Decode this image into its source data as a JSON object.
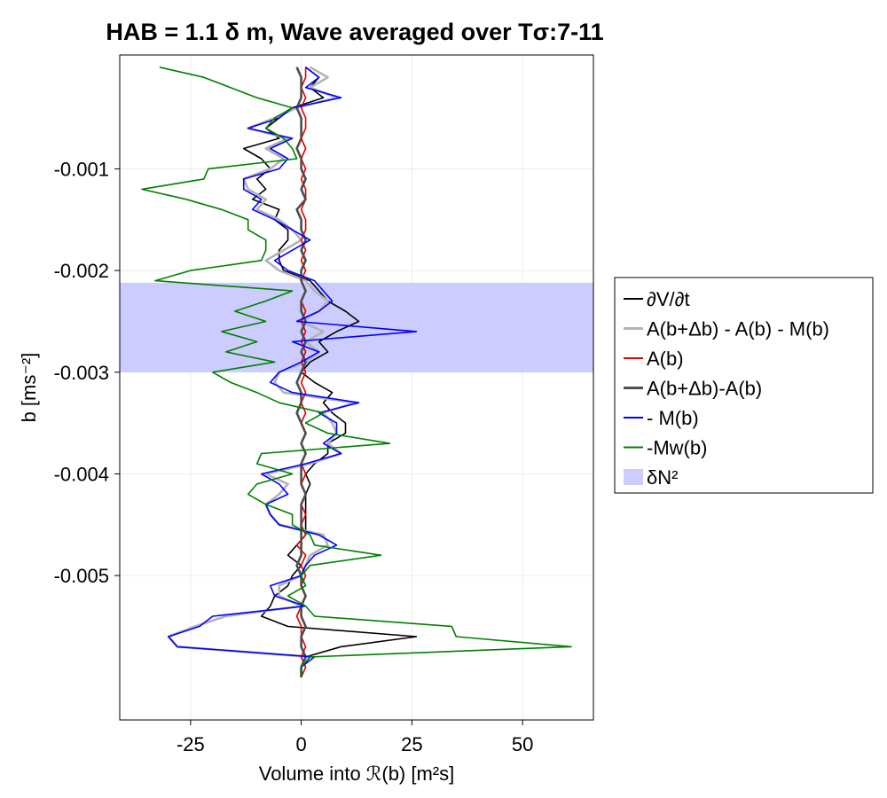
{
  "chart_data": {
    "type": "line",
    "title": "HAB = 1.1 δ m, Wave averaged over Tσ:7-11",
    "xlabel": "Volume into ℛ(b) [m²s]",
    "ylabel": "b [ms⁻²]",
    "xlim": [
      -41,
      66
    ],
    "ylim": [
      -0.00642,
      0.00012
    ],
    "x_ticks": [
      -25,
      0,
      25,
      50
    ],
    "x_tick_labels": [
      "-25",
      "0",
      "25",
      "50"
    ],
    "y_ticks": [
      -0.001,
      -0.002,
      -0.003,
      -0.004,
      -0.005
    ],
    "y_tick_labels": [
      "-0.001",
      "-0.002",
      "-0.003",
      "-0.004",
      "-0.005"
    ],
    "grid": true,
    "legend_position": "right",
    "band": {
      "name": "δN²",
      "y_from": -0.00212,
      "y_to": -0.003,
      "color": "#ccccff"
    },
    "b": [
      -0.0,
      -0.0001,
      -0.0002,
      -0.0003,
      -0.0004,
      -0.0005,
      -0.0006,
      -0.0007,
      -0.0008,
      -0.0009,
      -0.001,
      -0.0011,
      -0.0012,
      -0.0013,
      -0.0014,
      -0.0015,
      -0.0016,
      -0.0017,
      -0.0018,
      -0.0019,
      -0.002,
      -0.0021,
      -0.0022,
      -0.0023,
      -0.0024,
      -0.0025,
      -0.0026,
      -0.0027,
      -0.0028,
      -0.0029,
      -0.003,
      -0.0031,
      -0.0032,
      -0.0033,
      -0.0034,
      -0.0035,
      -0.0036,
      -0.0037,
      -0.0038,
      -0.0039,
      -0.004,
      -0.0041,
      -0.0042,
      -0.0043,
      -0.0044,
      -0.0045,
      -0.0046,
      -0.0047,
      -0.0048,
      -0.0049,
      -0.005,
      -0.0051,
      -0.0052,
      -0.0053,
      -0.0054,
      -0.0055,
      -0.0056,
      -0.0057,
      -0.0058,
      -0.0059,
      -0.006
    ],
    "series": [
      {
        "name": "∂V/∂t",
        "color": "#000000",
        "width": 1.6,
        "x": [
          1,
          4,
          2,
          5,
          -2,
          -5,
          -8,
          -5,
          -13,
          -9,
          -7,
          -10,
          -8,
          -11,
          -5,
          -6,
          -3,
          -3,
          -5,
          -5,
          -4,
          2,
          4,
          6,
          10,
          13,
          8,
          4,
          6,
          2,
          0,
          3,
          7,
          5,
          7,
          10,
          10,
          6,
          6,
          3,
          1,
          2,
          1,
          1,
          1,
          1,
          1,
          -1,
          -3,
          0,
          -2,
          -3,
          -6,
          -7,
          -9,
          -3,
          26,
          9,
          1,
          0,
          0
        ]
      },
      {
        "name": "A(b+Δb) - A(b) - M(b)",
        "color": "#b3b3b3",
        "width": 2.6,
        "x": [
          2,
          6,
          2,
          8,
          -1,
          -6,
          -12,
          -3,
          -8,
          -4,
          -7,
          -13,
          -12,
          -8,
          -10,
          -5,
          -2,
          0,
          -4,
          -8,
          -5,
          1,
          3,
          6,
          4,
          0,
          5,
          1,
          4,
          1,
          -5,
          -6,
          -4,
          12,
          5,
          7,
          8,
          6,
          9,
          2,
          -8,
          -3,
          -5,
          -8,
          -7,
          -5,
          5,
          6,
          2,
          1,
          0,
          -5,
          -5,
          0,
          -17,
          -24,
          -30,
          -28,
          2,
          0,
          0
        ]
      },
      {
        "name": "A(b)",
        "color": "#e00000",
        "width": 1.6,
        "x": [
          1,
          1,
          0,
          1,
          0,
          1,
          1,
          0,
          1,
          0,
          1,
          0,
          1,
          1,
          0,
          1,
          1,
          0,
          1,
          0,
          1,
          0,
          1,
          0,
          1,
          0,
          1,
          0,
          1,
          0,
          1,
          0,
          1,
          0,
          1,
          0,
          1,
          0,
          1,
          0,
          1,
          0,
          1,
          0,
          1,
          0,
          1,
          -1,
          1,
          0,
          1,
          0,
          1,
          0,
          -1,
          0,
          0,
          1,
          0,
          1,
          0
        ]
      },
      {
        "name": "A(b+Δb)-A(b)",
        "color": "#4d4d4d",
        "width": 2.6,
        "x": [
          -1,
          0,
          0,
          0,
          -1,
          0,
          0,
          0,
          -1,
          0,
          0,
          1,
          0,
          1,
          -1,
          0,
          0,
          1,
          0,
          1,
          0,
          0,
          1,
          0,
          0,
          1,
          0,
          1,
          0,
          1,
          0,
          -1,
          0,
          0,
          -1,
          0,
          1,
          0,
          1,
          0,
          0,
          0,
          1,
          0,
          0,
          0,
          0,
          0,
          0,
          -1,
          0,
          0,
          1,
          0,
          0,
          1,
          0,
          0,
          1,
          0,
          0
        ]
      },
      {
        "name": "- M(b)",
        "color": "#0000ff",
        "width": 1.6,
        "x": [
          1,
          4,
          1,
          9,
          -2,
          -5,
          -12,
          -2,
          -7,
          -3,
          -5,
          -13,
          -13,
          -9,
          -11,
          -6,
          -2,
          2,
          -2,
          -6,
          -3,
          3,
          5,
          7,
          4,
          -1,
          26,
          -2,
          4,
          0,
          -5,
          -7,
          -2,
          13,
          4,
          8,
          8,
          5,
          9,
          1,
          -9,
          -5,
          -3,
          -8,
          -7,
          -5,
          4,
          8,
          3,
          1,
          0,
          -7,
          -6,
          1,
          -20,
          -23,
          -30,
          -28,
          3,
          0,
          0
        ]
      },
      {
        "name": "-Mw(b)",
        "color": "#008000",
        "width": 1.6,
        "x": [
          -32,
          -22,
          -16,
          -10,
          -2,
          -6,
          -8,
          -4,
          -2,
          -1,
          -21,
          -22,
          -36,
          -26,
          -18,
          -12,
          -12,
          -8,
          -8,
          -9,
          -25,
          -33,
          -2,
          -8,
          -15,
          -8,
          -18,
          -10,
          -17,
          -6,
          -20,
          -16,
          -10,
          -5,
          5,
          1,
          6,
          20,
          -9,
          -10,
          -2,
          -10,
          -12,
          -8,
          -2,
          -2,
          2,
          3,
          18,
          2,
          0,
          1,
          -3,
          1,
          3,
          34,
          35,
          61,
          2,
          0,
          0
        ]
      }
    ]
  }
}
